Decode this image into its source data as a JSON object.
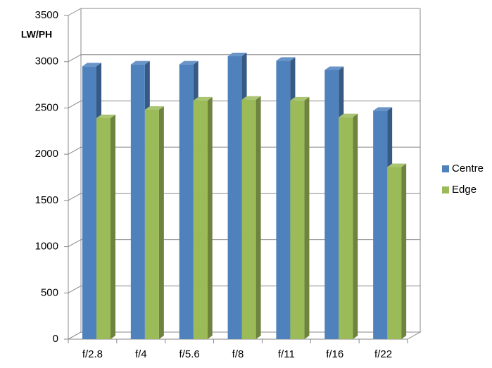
{
  "chart_data": {
    "type": "bar3d",
    "ylabel": "LW/PH",
    "categories": [
      "f/2.8",
      "f/4",
      "f/5.6",
      "f/8",
      "f/11",
      "f/16",
      "f/22"
    ],
    "series": [
      {
        "name": "Centre",
        "color": "#4f81bd",
        "values": [
          2950,
          2970,
          2970,
          3060,
          3010,
          2910,
          2470
        ]
      },
      {
        "name": "Edge",
        "color": "#9bbb59",
        "values": [
          2390,
          2480,
          2580,
          2590,
          2580,
          2400,
          1860
        ]
      }
    ],
    "ylim": [
      0,
      3500
    ],
    "yticks": [
      0,
      500,
      1000,
      1500,
      2000,
      2500,
      3000,
      3500
    ],
    "grid": true,
    "legend": "right"
  }
}
